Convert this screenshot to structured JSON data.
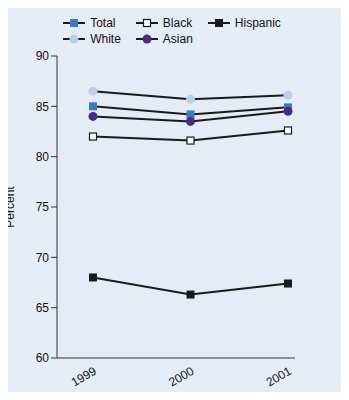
{
  "chart_data": {
    "type": "line",
    "categories": [
      "1999",
      "2000",
      "2001"
    ],
    "ylabel": "Percent",
    "ylim": [
      60,
      90
    ],
    "yticks": [
      60,
      65,
      70,
      75,
      80,
      85,
      90
    ],
    "grid": false,
    "legend": "top",
    "series": [
      {
        "name": "Total",
        "color": "#3a7bbd",
        "marker": "square",
        "values": [
          85.0,
          84.2,
          84.9
        ]
      },
      {
        "name": "Black",
        "color": "#ffffff",
        "marker": "open_square",
        "values": [
          82.0,
          81.6,
          82.6
        ]
      },
      {
        "name": "Hispanic",
        "color": "#1a1a1a",
        "marker": "square",
        "values": [
          68.0,
          66.3,
          67.4
        ]
      },
      {
        "name": "White",
        "color": "#b9d0e8",
        "marker": "circle",
        "values": [
          86.5,
          85.7,
          86.1
        ]
      },
      {
        "name": "Asian",
        "color": "#4b2c82",
        "marker": "circle",
        "values": [
          84.0,
          83.5,
          84.5
        ]
      }
    ]
  }
}
